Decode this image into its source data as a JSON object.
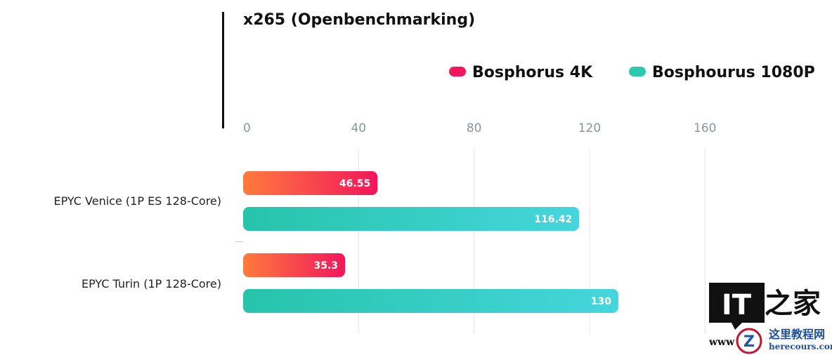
{
  "chart_data": {
    "type": "bar",
    "orientation": "horizontal",
    "title": "x265 (Openbenchmarking)",
    "xlabel": "",
    "ylabel": "",
    "xlim": [
      0,
      160
    ],
    "x_ticks": [
      "0",
      "40",
      "80",
      "120",
      "160"
    ],
    "categories": [
      "EPYC Venice (1P ES 128-Core)",
      "EPYC Turin (1P 128-Core)"
    ],
    "series": [
      {
        "name": "Bosphorus 4K",
        "values": [
          46.55,
          35.3
        ],
        "value_labels": [
          "46.55",
          "35.3"
        ],
        "color": "#f2165c",
        "gradient": [
          "#ff7a3d",
          "#f2165c"
        ]
      },
      {
        "name": "Bosphourus 1080P",
        "values": [
          116.42,
          130
        ],
        "value_labels": [
          "116.42",
          "130"
        ],
        "color": "#2cc9b0",
        "gradient": [
          "#26c4ab",
          "#45d6dc"
        ]
      }
    ],
    "legend_position": "top-right",
    "grid": true
  },
  "watermark": {
    "logo_text": "IT之家",
    "site_cn": "这里教程网",
    "site_en": "herecours.com",
    "prefix": "www"
  }
}
